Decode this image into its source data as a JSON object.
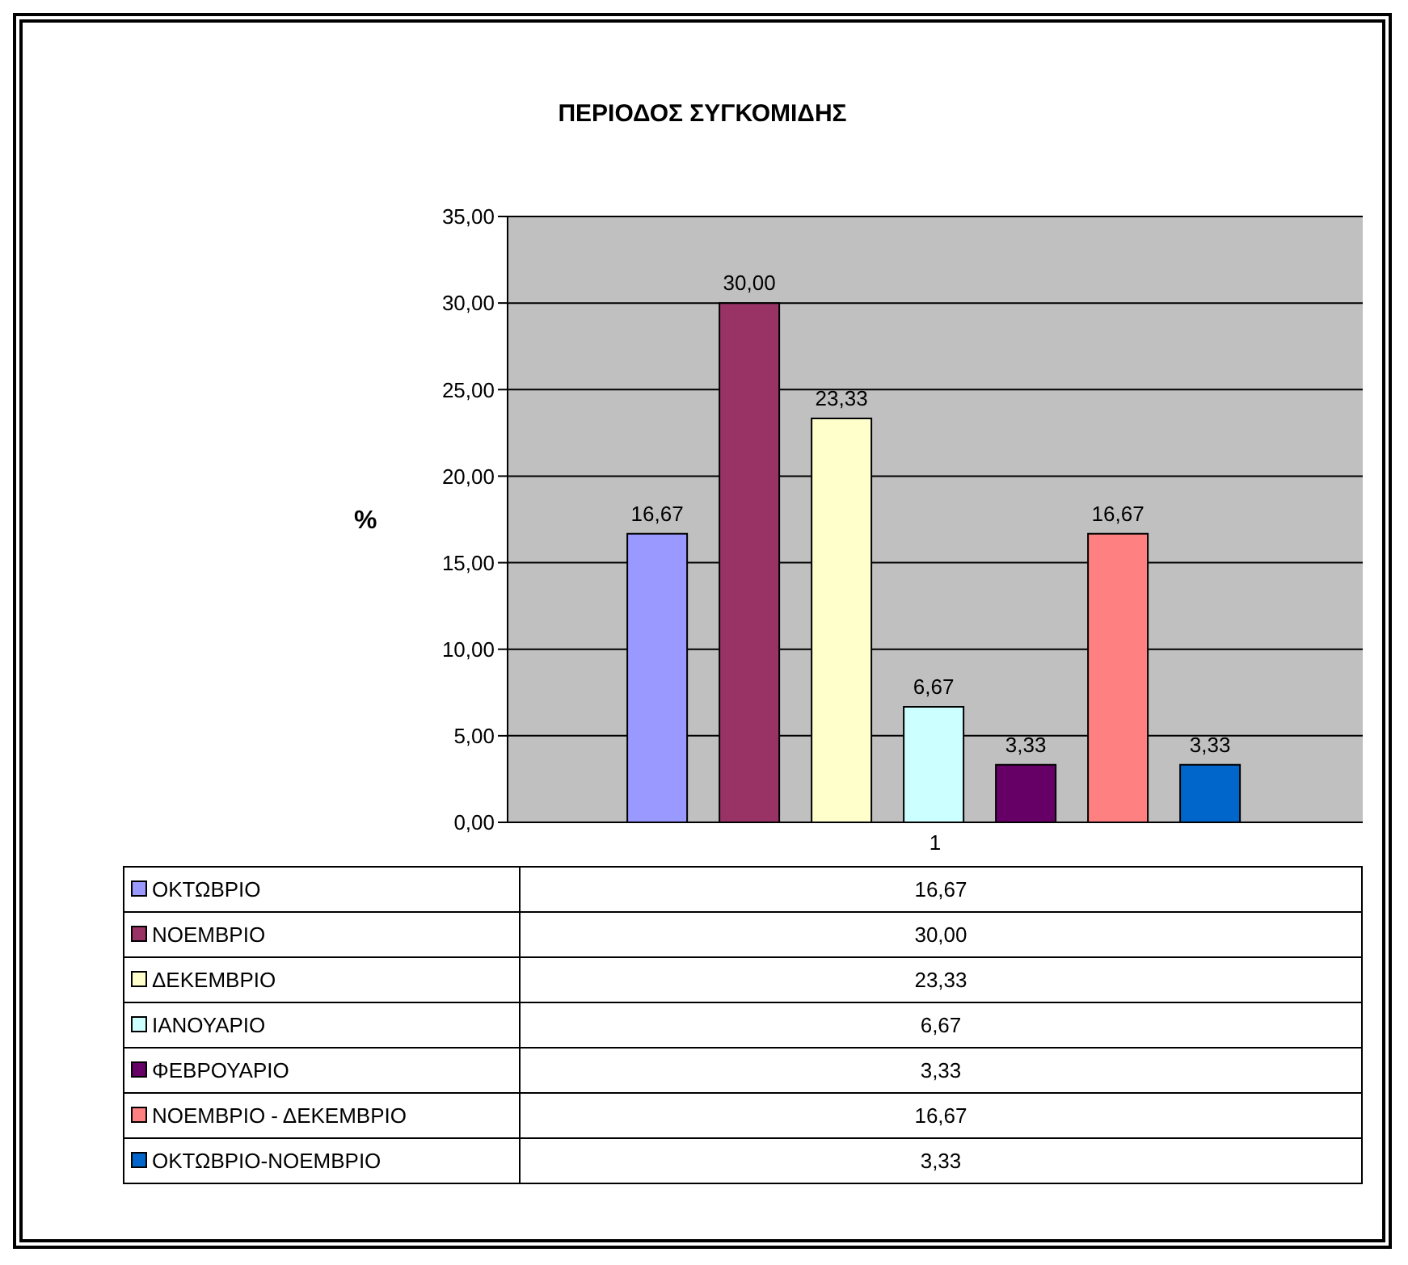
{
  "chart_data": {
    "type": "bar",
    "title": "ΠΕΡΙΟΔΟΣ ΣΥΓΚΟΜΙΔΗΣ",
    "ylabel": "%",
    "categories": [
      "1"
    ],
    "series": [
      {
        "name": "ΟΚΤΩΒΡΙΟ",
        "color": "#9999ff",
        "values": [
          16.67
        ],
        "value_labels": [
          "16,67"
        ]
      },
      {
        "name": "ΝΟΕΜΒΡΙΟ",
        "color": "#993366",
        "values": [
          30.0
        ],
        "value_labels": [
          "30,00"
        ]
      },
      {
        "name": "ΔΕΚΕΜΒΡΙΟ",
        "color": "#ffffcc",
        "values": [
          23.33
        ],
        "value_labels": [
          "23,33"
        ]
      },
      {
        "name": "ΙΑΝΟΥΑΡΙΟ",
        "color": "#ccffff",
        "values": [
          6.67
        ],
        "value_labels": [
          "6,67"
        ]
      },
      {
        "name": "ΦΕΒΡΟΥΑΡΙΟ",
        "color": "#660066",
        "values": [
          3.33
        ],
        "value_labels": [
          "3,33"
        ]
      },
      {
        "name": "ΝΟΕΜΒΡΙΟ - ΔΕΚΕΜΒΡΙΟ",
        "color": "#ff8080",
        "values": [
          16.67
        ],
        "value_labels": [
          "16,67"
        ]
      },
      {
        "name": "ΟΚΤΩΒΡΙΟ-ΝΟΕΜΒΡΙΟ",
        "color": "#0066cc",
        "values": [
          3.33
        ],
        "value_labels": [
          "3,33"
        ]
      }
    ],
    "ylim": [
      0,
      35
    ],
    "yticks": [
      {
        "value": 0,
        "label": "0,00"
      },
      {
        "value": 5,
        "label": "5,00"
      },
      {
        "value": 10,
        "label": "10,00"
      },
      {
        "value": 15,
        "label": "15,00"
      },
      {
        "value": 20,
        "label": "20,00"
      },
      {
        "value": 25,
        "label": "25,00"
      },
      {
        "value": 30,
        "label": "30,00"
      },
      {
        "value": 35,
        "label": "35,00"
      }
    ],
    "grid": "y",
    "legend": "bottom"
  }
}
